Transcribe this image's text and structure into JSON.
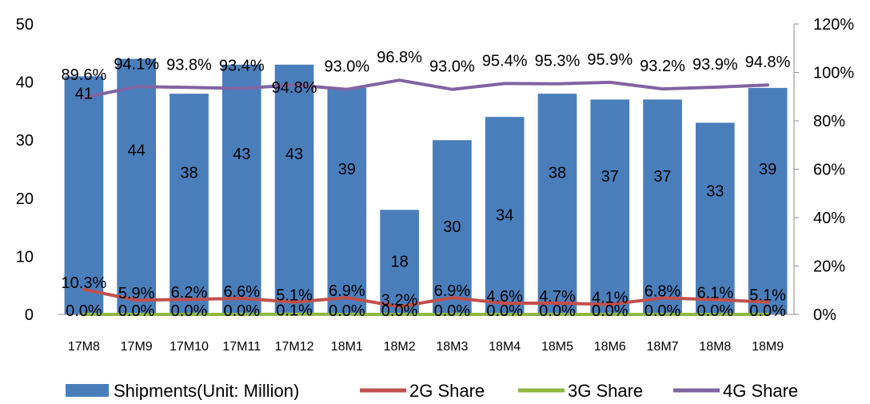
{
  "chart_data": {
    "type": "bar",
    "categories": [
      "17M8",
      "17M9",
      "17M10",
      "17M11",
      "17M12",
      "18M1",
      "18M2",
      "18M3",
      "18M4",
      "18M5",
      "18M6",
      "18M7",
      "18M8",
      "18M9"
    ],
    "series": [
      {
        "name": "Shipments(Unit: Million)",
        "type": "bar",
        "axis": "left",
        "color": "#4a7ebb",
        "values": [
          41,
          44,
          38,
          43,
          43,
          39,
          18,
          30,
          34,
          38,
          37,
          37,
          33,
          39
        ],
        "labels": [
          "41",
          "44",
          "38",
          "43",
          "43",
          "39",
          "18",
          "30",
          "34",
          "38",
          "37",
          "37",
          "33",
          "39"
        ]
      },
      {
        "name": "2G Share",
        "type": "line",
        "axis": "right",
        "color": "#c0504d",
        "values": [
          10.3,
          5.9,
          6.2,
          6.6,
          5.1,
          6.9,
          3.2,
          6.9,
          4.6,
          4.7,
          4.1,
          6.8,
          6.1,
          5.1
        ],
        "labels": [
          "10.3%",
          "5.9%",
          "6.2%",
          "6.6%",
          "5.1%",
          "6.9%",
          "3.2%",
          "6.9%",
          "4.6%",
          "4.7%",
          "4.1%",
          "6.8%",
          "6.1%",
          "5.1%"
        ]
      },
      {
        "name": "3G Share",
        "type": "line",
        "axis": "right",
        "color": "#8db83f",
        "values": [
          0.0,
          0.0,
          0.0,
          0.0,
          0.1,
          0.0,
          0.0,
          0.0,
          0.0,
          0.0,
          0.0,
          0.0,
          0.0,
          0.0
        ],
        "labels": [
          "0.0%",
          "0.0%",
          "0.0%",
          "0.0%",
          "0.1%",
          "0.0%",
          "0.0%",
          "0.0%",
          "0.0%",
          "0.0%",
          "0.0%",
          "0.0%",
          "0.0%",
          "0.0%"
        ]
      },
      {
        "name": "4G Share",
        "type": "line",
        "axis": "right",
        "color": "#8064a2",
        "values": [
          89.6,
          94.1,
          93.8,
          93.4,
          94.8,
          93.0,
          96.8,
          93.0,
          95.4,
          95.3,
          95.9,
          93.2,
          93.9,
          94.8
        ],
        "labels": [
          "89.6%",
          "94.1%",
          "93.8%",
          "93.4%",
          "94.8%",
          "93.0%",
          "96.8%",
          "93.0%",
          "95.4%",
          "95.3%",
          "95.9%",
          "93.2%",
          "93.9%",
          "94.8%"
        ]
      }
    ],
    "y_left": {
      "min": 0,
      "max": 50,
      "ticks": [
        0,
        10,
        20,
        30,
        40,
        50
      ],
      "tick_labels": [
        "0",
        "10",
        "20",
        "30",
        "40",
        "50"
      ]
    },
    "y_right": {
      "min": 0,
      "max": 120,
      "ticks": [
        0,
        20,
        40,
        60,
        80,
        100,
        120
      ],
      "tick_labels": [
        "0%",
        "20%",
        "40%",
        "60%",
        "80%",
        "100%",
        "120%"
      ]
    },
    "title": "",
    "xlabel": "",
    "ylabel": "",
    "grid": false,
    "legend_position": "bottom"
  }
}
